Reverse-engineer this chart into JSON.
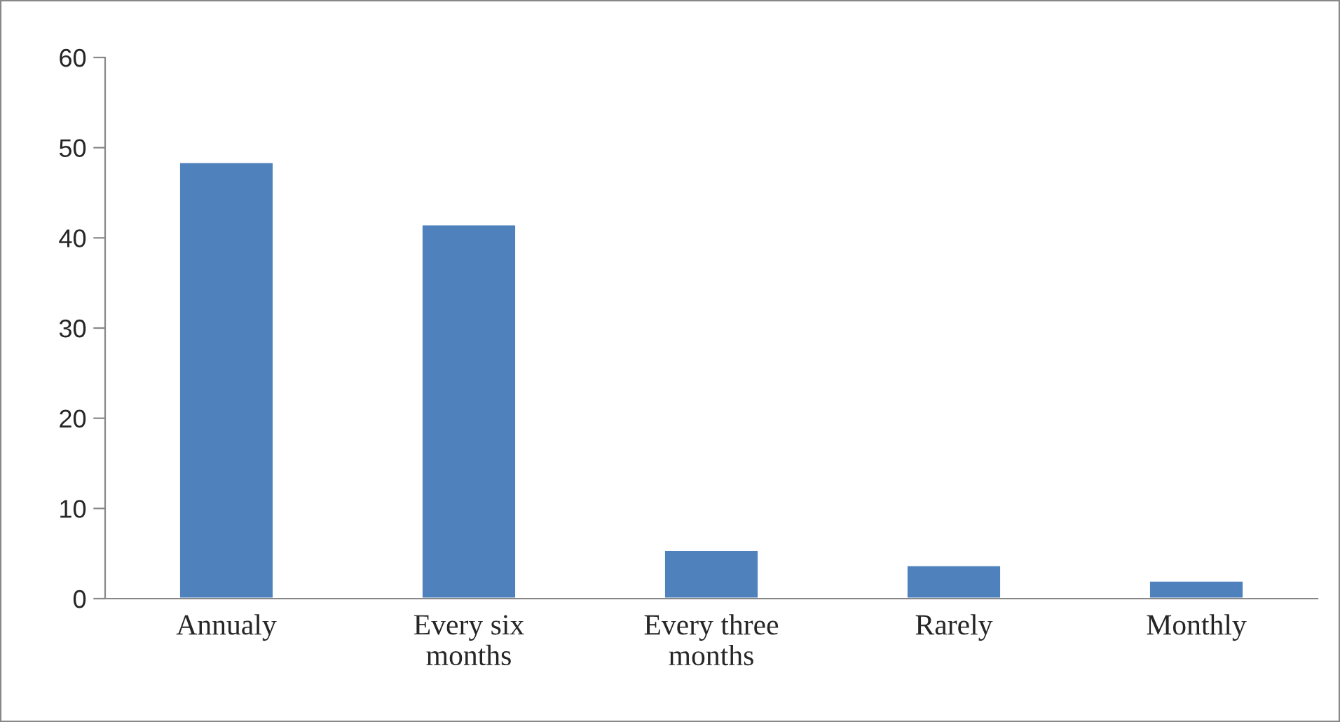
{
  "chart_data": {
    "type": "bar",
    "categories": [
      "Annualy",
      "Every six\nmonths",
      "Every three\nmonths",
      "Rarely",
      "Monthly"
    ],
    "values": [
      48.4,
      41.5,
      5.4,
      3.7,
      2.0
    ],
    "color": "#4f81bd",
    "ylim": [
      0,
      60
    ],
    "yticks": [
      0,
      10,
      20,
      30,
      40,
      50,
      60
    ],
    "grid": false,
    "legend": false
  }
}
